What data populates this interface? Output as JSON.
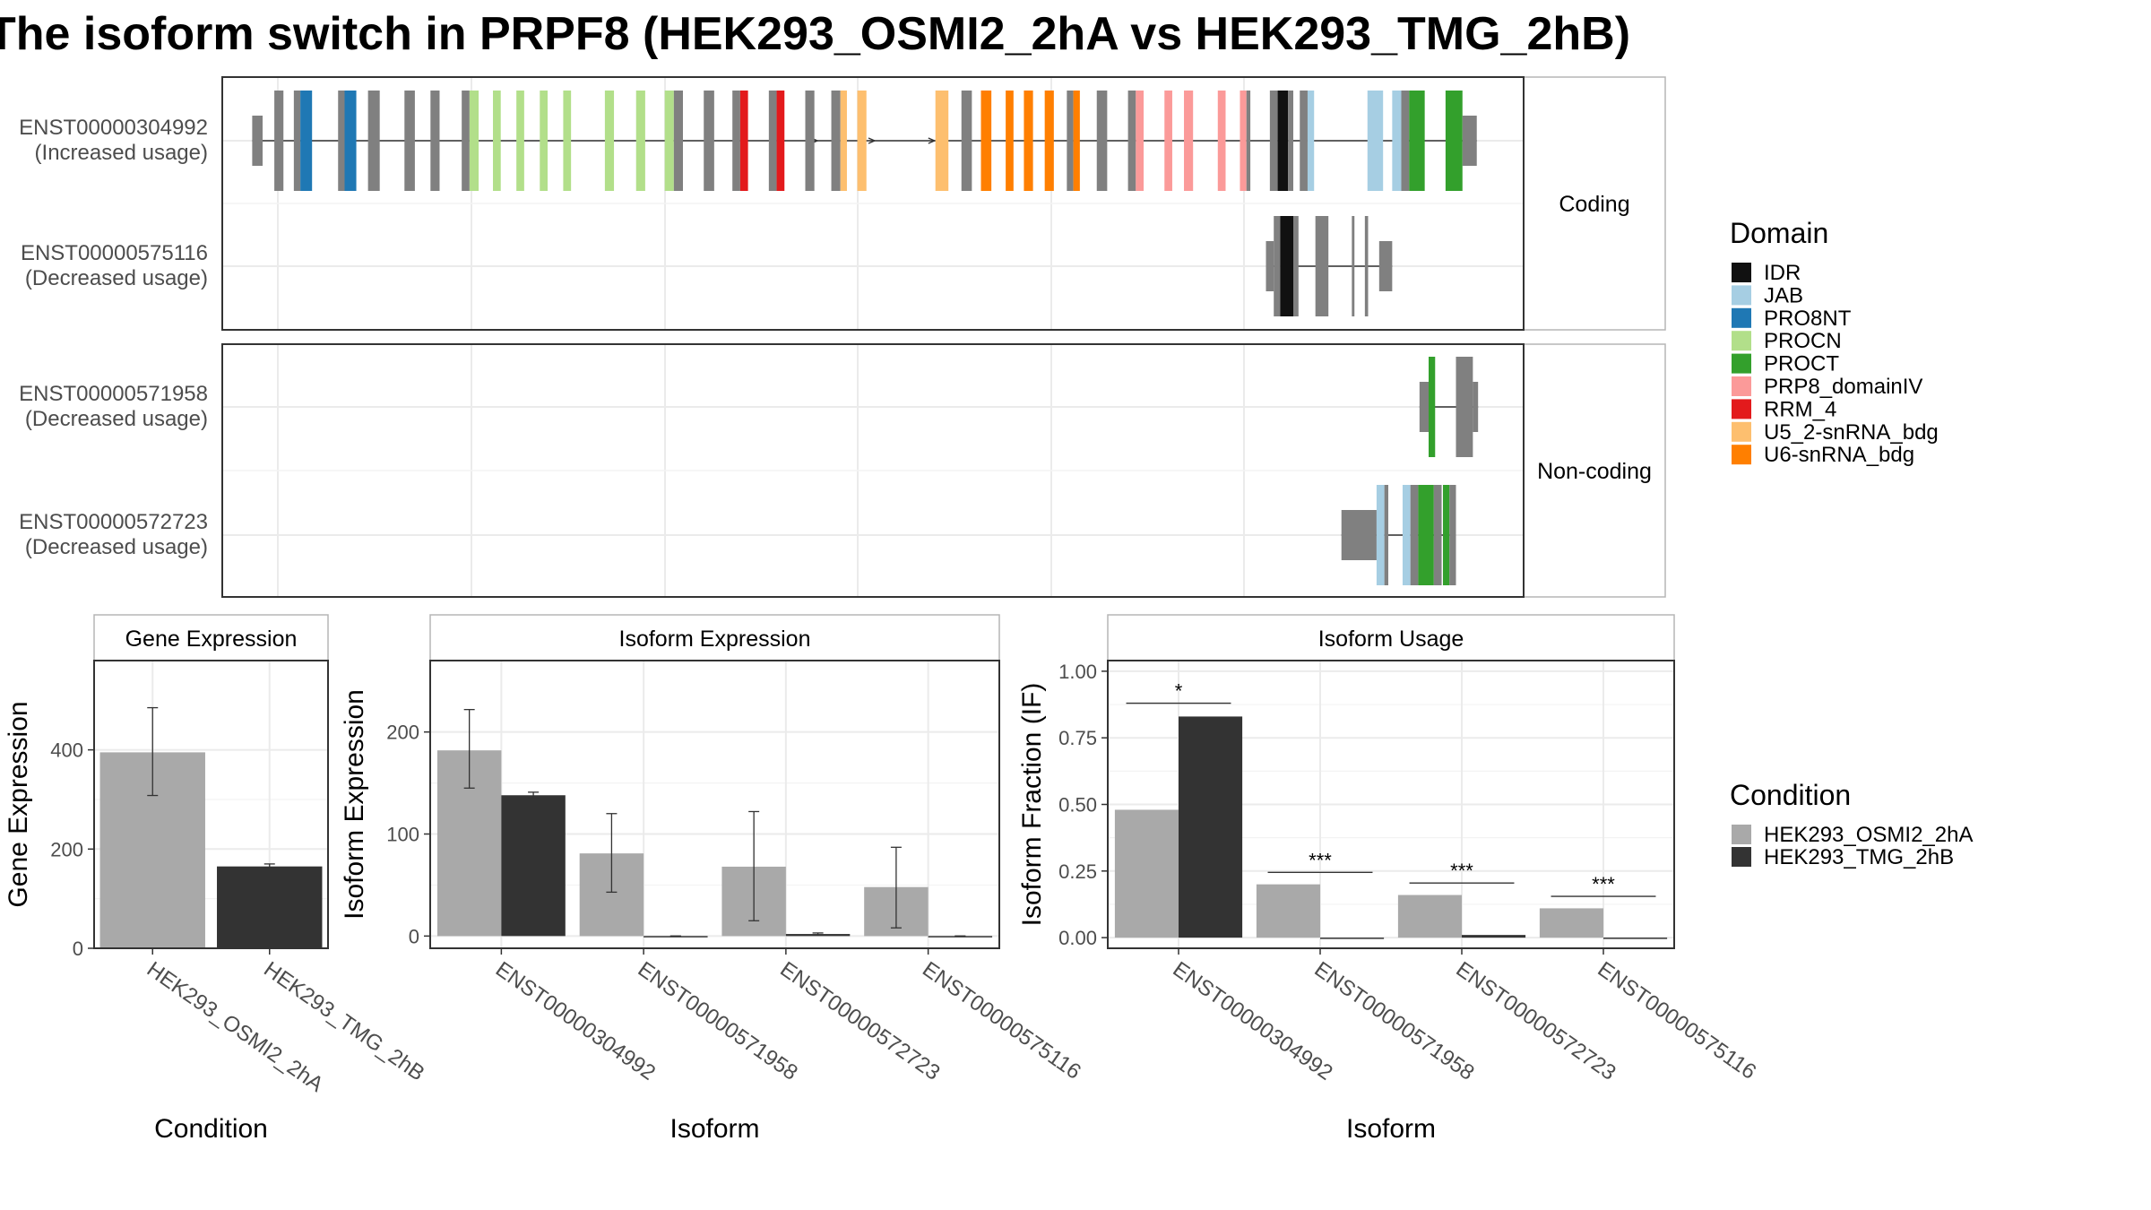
{
  "title": "The isoform switch in PRPF8 (HEK293_OSMI2_2hA vs HEK293_TMG_2hB)",
  "colors": {
    "IDR": "#111111",
    "JAB": "#a6cee3",
    "PRO8NT": "#1f78b4",
    "PROCN": "#b2df8a",
    "PROCT": "#33a02c",
    "PRP8_domainIV": "#fb9a99",
    "RRM_4": "#e31a1c",
    "U5_2-snRNA_bdg": "#fdbf6f",
    "U6-snRNA_bdg": "#ff7f00",
    "none": "#808080",
    "HEK293_OSMI2_2hA": "#a9a9a9",
    "HEK293_TMG_2hB": "#333333"
  },
  "legend_domain": {
    "title": "Domain",
    "items": [
      "IDR",
      "JAB",
      "PRO8NT",
      "PROCN",
      "PROCT",
      "PRP8_domainIV",
      "RRM_4",
      "U5_2-snRNA_bdg",
      "U6-snRNA_bdg"
    ]
  },
  "legend_condition": {
    "title": "Condition",
    "items": [
      "HEK293_OSMI2_2hA",
      "HEK293_TMG_2hB"
    ]
  },
  "structure": {
    "x_range": [
      0,
      100
    ],
    "panels": [
      {
        "label": "Coding",
        "transcripts": [
          {
            "id": "ENST00000304992",
            "usage": "(Increased usage)"
          },
          {
            "id": "ENST00000575116",
            "usage": "(Decreased usage)"
          }
        ]
      },
      {
        "label": "Non-coding",
        "transcripts": [
          {
            "id": "ENST00000571958",
            "usage": "(Decreased usage)"
          },
          {
            "id": "ENST00000572723",
            "usage": "(Decreased usage)"
          }
        ]
      }
    ]
  },
  "chart_data": [
    {
      "type": "bar",
      "title": "Gene Expression",
      "xlabel": "Condition",
      "ylabel": "Gene Expression",
      "categories": [
        "HEK293_OSMI2_2hA",
        "HEK293_TMG_2hB"
      ],
      "values": [
        395,
        165
      ],
      "error_low": [
        308,
        160
      ],
      "error_high": [
        485,
        170
      ],
      "ylim": [
        0,
        580
      ],
      "yticks": [
        0,
        200,
        400
      ]
    },
    {
      "type": "bar",
      "title": "Isoform Expression",
      "xlabel": "Isoform",
      "ylabel": "Isoform Expression",
      "categories": [
        "ENST00000304992",
        "ENST00000571958",
        "ENST00000572723",
        "ENST00000575116"
      ],
      "series": [
        {
          "name": "HEK293_OSMI2_2hA",
          "values": [
            182,
            81,
            68,
            48
          ],
          "error_low": [
            145,
            43,
            15,
            8
          ],
          "error_high": [
            222,
            120,
            122,
            87
          ]
        },
        {
          "name": "HEK293_TMG_2hB",
          "values": [
            138,
            0,
            2,
            0
          ],
          "error_low": [
            135,
            0,
            1,
            0
          ],
          "error_high": [
            141,
            0,
            3,
            0
          ]
        }
      ],
      "ylim": [
        -12,
        270
      ],
      "yticks": [
        0,
        100,
        200
      ]
    },
    {
      "type": "bar",
      "title": "Isoform Usage",
      "xlabel": "Isoform",
      "ylabel": "Isoform Fraction (IF)",
      "categories": [
        "ENST00000304992",
        "ENST00000571958",
        "ENST00000572723",
        "ENST00000575116"
      ],
      "series": [
        {
          "name": "HEK293_OSMI2_2hA",
          "values": [
            0.48,
            0.2,
            0.16,
            0.11
          ]
        },
        {
          "name": "HEK293_TMG_2hB",
          "values": [
            0.83,
            0.0,
            0.01,
            0.0
          ]
        }
      ],
      "significance": [
        "*",
        "***",
        "***",
        "***"
      ],
      "sig_y": [
        0.88,
        0.245,
        0.205,
        0.155
      ],
      "ylim": [
        -0.04,
        1.04
      ],
      "yticks": [
        0.0,
        0.25,
        0.5,
        0.75,
        1.0
      ],
      "ytick_labels": [
        "0.00",
        "0.25",
        "0.50",
        "0.75",
        "1.00"
      ]
    }
  ]
}
